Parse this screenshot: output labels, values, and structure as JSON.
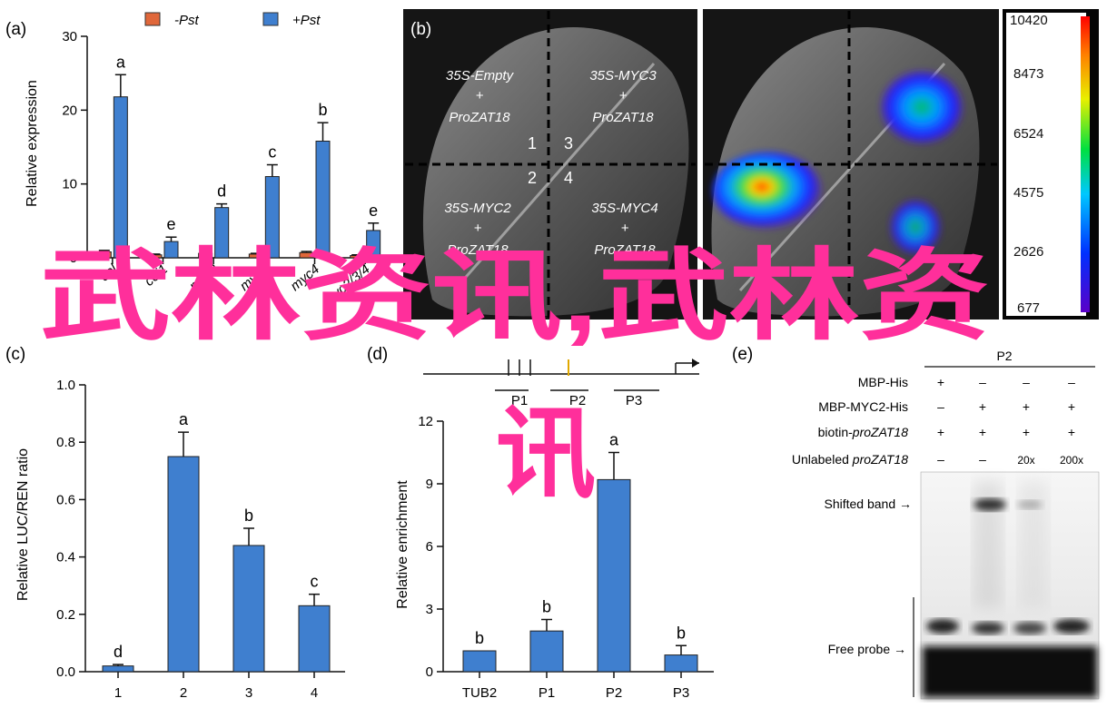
{
  "panel_a": {
    "label": "(a)",
    "legend": [
      "-Pst",
      "+Pst"
    ],
    "ylabel": "Relative expression"
  },
  "panel_b": {
    "label": "(b)",
    "quadrants": [
      {
        "l1": "35S-Empty",
        "l2": "+",
        "l3": "ProZAT18"
      },
      {
        "l1": "35S-MYC3",
        "l2": "+",
        "l3": "ProZAT18"
      },
      {
        "l1": "35S-MYC2",
        "l2": "+",
        "l3": "ProZAT18"
      },
      {
        "l1": "35S-MYC4",
        "l2": "+",
        "l3": "ProZAT18"
      }
    ],
    "numbers": [
      "1",
      "3",
      "2",
      "4"
    ],
    "colorbar_ticks": [
      "10420",
      "8473",
      "6524",
      "4575",
      "2626",
      "677"
    ]
  },
  "panel_c": {
    "label": "(c)",
    "ylabel": "Relative LUC/REN ratio"
  },
  "panel_d": {
    "label": "(d)",
    "ylabel": "Relative enrichment",
    "promoter_regions": [
      "P1",
      "P2",
      "P3"
    ]
  },
  "panel_e": {
    "label": "(e)",
    "lane_group": "P2",
    "rows": [
      {
        "label": "MBP-His",
        "values": [
          "+",
          "–",
          "–",
          "–"
        ]
      },
      {
        "label": "MBP-MYC2-His",
        "values": [
          "–",
          "+",
          "+",
          "+"
        ]
      },
      {
        "label": "biotin-proZAT18",
        "values": [
          "+",
          "+",
          "+",
          "+"
        ]
      },
      {
        "label": "Unlabeled proZAT18",
        "values": [
          "–",
          "–",
          "20x",
          "200x"
        ]
      }
    ],
    "shifted_band": "Shifted band →",
    "free_probe": "Free probe →"
  },
  "watermark": {
    "line1": "武林资讯,武林资",
    "line2": "讯"
  },
  "chart_data": [
    {
      "panel": "a",
      "type": "bar",
      "categories": [
        "col",
        "coi1",
        "myc2",
        "myc3",
        "myc4",
        "myc2/3/4"
      ],
      "series": [
        {
          "name": "-Pst",
          "color": "#e0673a",
          "values": [
            0.8,
            0.4,
            0.6,
            0.5,
            0.7,
            0.3
          ],
          "errors": [
            0.2,
            0.1,
            0.15,
            0.1,
            0.15,
            0.1
          ]
        },
        {
          "name": "+Pst",
          "color": "#3f7fcf",
          "values": [
            21.8,
            2.2,
            6.8,
            11.0,
            15.8,
            3.7
          ],
          "errors": [
            3.0,
            0.6,
            0.5,
            1.6,
            2.5,
            1.0
          ]
        }
      ],
      "significance": [
        "a",
        "e",
        "d",
        "c",
        "b",
        "e"
      ],
      "ylabel": "Relative expression",
      "ylim": [
        0,
        30
      ],
      "yticks": [
        0,
        10,
        20,
        30
      ]
    },
    {
      "panel": "c",
      "type": "bar",
      "categories": [
        "1",
        "2",
        "3",
        "4"
      ],
      "values": [
        0.02,
        0.75,
        0.44,
        0.23
      ],
      "errors": [
        0.005,
        0.085,
        0.06,
        0.04
      ],
      "significance": [
        "d",
        "a",
        "b",
        "c"
      ],
      "ylabel": "Relative LUC/REN ratio",
      "ylim": [
        0,
        1.0
      ],
      "yticks": [
        "0.0",
        "0.2",
        "0.4",
        "0.6",
        "0.8",
        "1.0"
      ]
    },
    {
      "panel": "d",
      "type": "bar",
      "categories": [
        "TUB2",
        "P1",
        "P2",
        "P3"
      ],
      "values": [
        1.0,
        1.95,
        9.2,
        0.8
      ],
      "errors": [
        0,
        0.55,
        1.3,
        0.45
      ],
      "significance": [
        "b",
        "b",
        "a",
        "b"
      ],
      "ylabel": "Relative enrichment",
      "ylim": [
        0,
        12
      ],
      "yticks": [
        0,
        3,
        6,
        9,
        12
      ]
    }
  ]
}
